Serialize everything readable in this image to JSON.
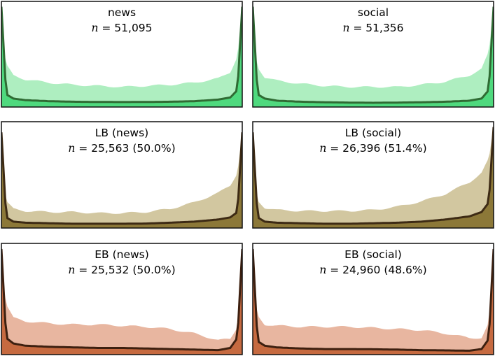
{
  "figure": {
    "panels": [
      {
        "title": "news",
        "n_prefix": "n",
        "n_value": "= 51,095",
        "fill_color": "#4fd97e",
        "outer_fill": "#aeeec0",
        "line_color": "#2f6b33"
      },
      {
        "title": "social",
        "n_prefix": "n",
        "n_value": "= 51,356",
        "fill_color": "#4fd97e",
        "outer_fill": "#aeeec0",
        "line_color": "#2f6b33"
      },
      {
        "title": "LB (news)",
        "n_prefix": "n",
        "n_value": "= 25,563 (50.0%)",
        "fill_color": "#8c7838",
        "outer_fill": "#d2c7a0",
        "line_color": "#3d2a14"
      },
      {
        "title": "LB (social)",
        "n_prefix": "n",
        "n_value": "= 26,396 (51.4%)",
        "fill_color": "#8c7838",
        "outer_fill": "#d2c7a0",
        "line_color": "#3d2a14"
      },
      {
        "title": "EB (news)",
        "n_prefix": "n",
        "n_value": "= 25,532 (50.0%)",
        "fill_color": "#c66a40",
        "outer_fill": "#e8b6a0",
        "line_color": "#3d2010"
      },
      {
        "title": "EB (social)",
        "n_prefix": "n",
        "n_value": "= 24,960 (48.6%)",
        "fill_color": "#c66a40",
        "outer_fill": "#e8b6a0",
        "line_color": "#3d2010"
      }
    ]
  },
  "chart_data": [
    {
      "type": "area",
      "title": "news",
      "x": [
        0,
        0.02,
        0.05,
        0.1,
        0.2,
        0.3,
        0.4,
        0.5,
        0.6,
        0.7,
        0.8,
        0.9,
        0.95,
        0.98,
        1
      ],
      "outer": [
        0.75,
        0.4,
        0.3,
        0.26,
        0.23,
        0.21,
        0.2,
        0.19,
        0.2,
        0.21,
        0.23,
        0.27,
        0.33,
        0.48,
        0.95
      ],
      "inner": [
        0.95,
        0.12,
        0.08,
        0.065,
        0.055,
        0.05,
        0.048,
        0.047,
        0.048,
        0.05,
        0.055,
        0.07,
        0.09,
        0.16,
        0.95
      ]
    },
    {
      "type": "area",
      "title": "social",
      "x": [
        0,
        0.02,
        0.05,
        0.1,
        0.2,
        0.3,
        0.4,
        0.5,
        0.6,
        0.7,
        0.8,
        0.9,
        0.95,
        0.98,
        1
      ],
      "outer": [
        0.7,
        0.38,
        0.28,
        0.25,
        0.22,
        0.2,
        0.19,
        0.19,
        0.19,
        0.21,
        0.24,
        0.3,
        0.36,
        0.52,
        0.95
      ],
      "inner": [
        0.95,
        0.12,
        0.08,
        0.06,
        0.05,
        0.045,
        0.042,
        0.04,
        0.042,
        0.045,
        0.05,
        0.06,
        0.08,
        0.16,
        0.95
      ]
    },
    {
      "type": "area",
      "title": "LB (news)",
      "x": [
        0,
        0.02,
        0.05,
        0.1,
        0.2,
        0.3,
        0.4,
        0.5,
        0.6,
        0.7,
        0.8,
        0.9,
        0.95,
        0.98,
        1
      ],
      "outer": [
        0.6,
        0.25,
        0.18,
        0.16,
        0.15,
        0.15,
        0.14,
        0.14,
        0.15,
        0.18,
        0.24,
        0.33,
        0.4,
        0.52,
        0.9
      ],
      "inner": [
        0.9,
        0.1,
        0.06,
        0.05,
        0.045,
        0.04,
        0.04,
        0.04,
        0.042,
        0.05,
        0.06,
        0.08,
        0.1,
        0.15,
        0.9
      ]
    },
    {
      "type": "area",
      "title": "LB (social)",
      "x": [
        0,
        0.02,
        0.05,
        0.1,
        0.2,
        0.3,
        0.4,
        0.5,
        0.6,
        0.7,
        0.8,
        0.9,
        0.95,
        0.98,
        1
      ],
      "outer": [
        0.6,
        0.26,
        0.19,
        0.17,
        0.16,
        0.16,
        0.16,
        0.17,
        0.2,
        0.25,
        0.32,
        0.43,
        0.52,
        0.65,
        0.95
      ],
      "inner": [
        0.9,
        0.1,
        0.06,
        0.05,
        0.045,
        0.04,
        0.04,
        0.045,
        0.05,
        0.06,
        0.08,
        0.11,
        0.15,
        0.24,
        0.95
      ]
    },
    {
      "type": "area",
      "title": "EB (news)",
      "x": [
        0,
        0.02,
        0.05,
        0.1,
        0.2,
        0.3,
        0.4,
        0.5,
        0.6,
        0.7,
        0.8,
        0.9,
        0.95,
        0.98,
        1
      ],
      "outer": [
        0.8,
        0.45,
        0.33,
        0.3,
        0.28,
        0.27,
        0.27,
        0.26,
        0.25,
        0.23,
        0.19,
        0.13,
        0.14,
        0.25,
        0.9
      ],
      "inner": [
        0.95,
        0.15,
        0.1,
        0.08,
        0.07,
        0.065,
        0.06,
        0.06,
        0.055,
        0.05,
        0.045,
        0.04,
        0.06,
        0.15,
        0.95
      ]
    },
    {
      "type": "area",
      "title": "EB (social)",
      "x": [
        0,
        0.02,
        0.05,
        0.1,
        0.2,
        0.3,
        0.4,
        0.5,
        0.6,
        0.7,
        0.8,
        0.9,
        0.95,
        0.98,
        1
      ],
      "outer": [
        0.7,
        0.35,
        0.27,
        0.26,
        0.25,
        0.25,
        0.25,
        0.24,
        0.23,
        0.22,
        0.19,
        0.15,
        0.15,
        0.28,
        0.95
      ],
      "inner": [
        0.95,
        0.12,
        0.08,
        0.065,
        0.055,
        0.05,
        0.05,
        0.048,
        0.045,
        0.04,
        0.038,
        0.035,
        0.05,
        0.14,
        0.95
      ]
    }
  ]
}
